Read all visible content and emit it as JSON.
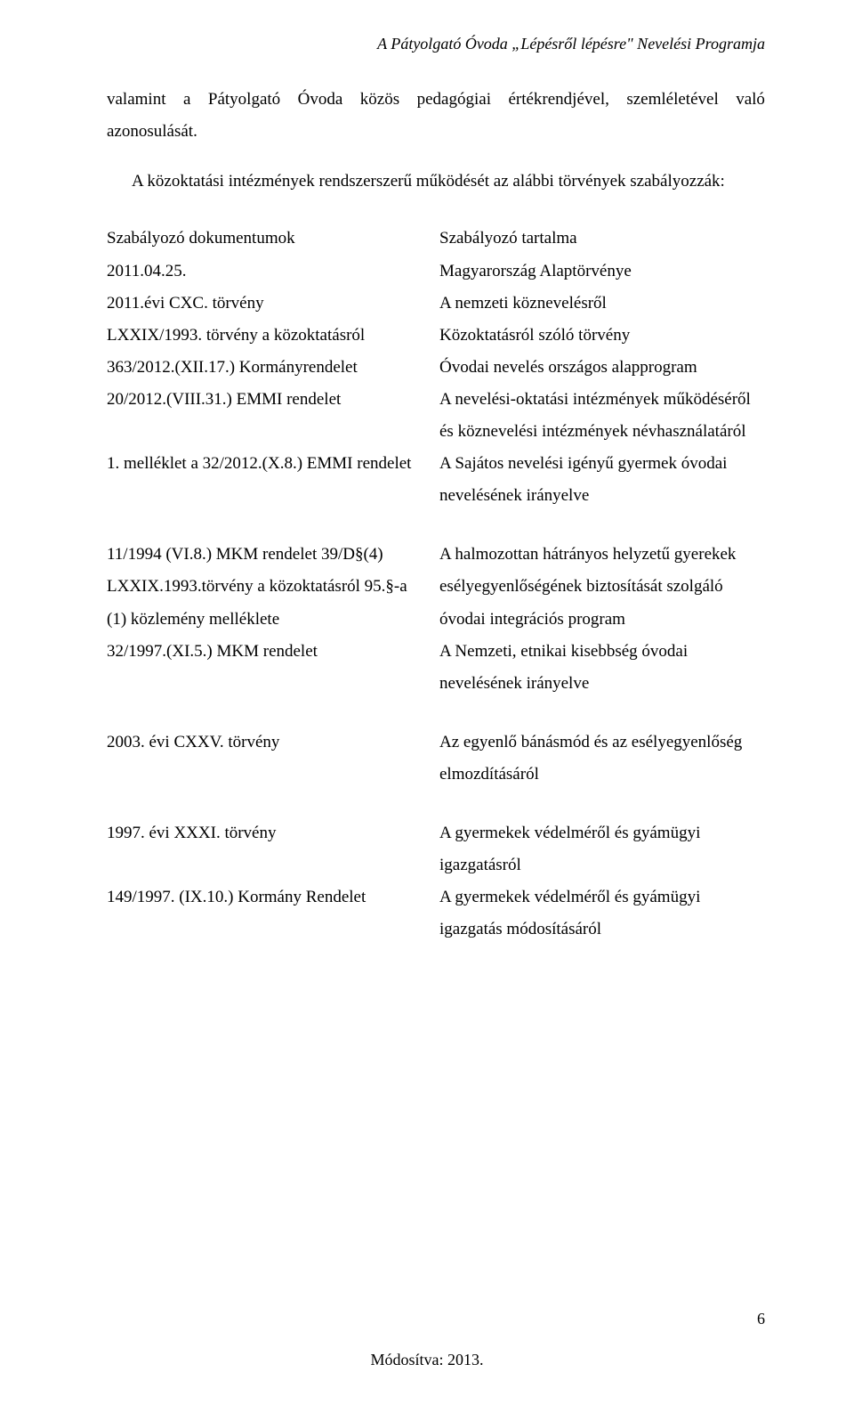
{
  "running_head": "A Pátyolgató Óvoda „Lépésről lépésre\" Nevelési Programja",
  "intro_w1": "valamint",
  "intro_w2": "a",
  "intro_w3": "Pátyolgató",
  "intro_w4": "Óvoda",
  "intro_w5": "közös",
  "intro_w6": "pedagógiai",
  "intro_w7": "értékrendjével,",
  "intro_w8": "szemléletével",
  "intro_w9": "való",
  "intro_line2": "azonosulását.",
  "intro_indent": "A közoktatási intézmények rendszerszerű működését az alábbi törvények szabályozzák:",
  "t1": {
    "l0": "Szabályozó dokumentumok",
    "l1": "2011.04.25.",
    "l2": "2011.évi CXC. törvény",
    "l3": "LXXIX/1993. törvény a közoktatásról",
    "l4": "363/2012.(XII.17.) Kormányrendelet",
    "l5": "20/2012.(VIII.31.) EMMI rendelet",
    "l6": "1. melléklet a 32/2012.(X.8.) EMMI rendelet",
    "r0": "Szabályozó tartalma",
    "r1": "Magyarország Alaptörvénye",
    "r2": "A nemzeti köznevelésről",
    "r3": "Közoktatásról szóló törvény",
    "r4": "Óvodai nevelés országos alapprogram",
    "r5": "A nevelési-oktatási intézmények működéséről és köznevelési intézmények névhasználatáról",
    "r6": "A Sajátos nevelési igényű gyermek óvodai nevelésének irányelve"
  },
  "t2": {
    "l1a": "11/1994 (VI.8.) MKM rendelet 39/D§(4)",
    "l1b": "LXXIX.1993.törvény a közoktatásról 95.§-a",
    "l1c": "(1) közlemény melléklete",
    "l2": "32/1997.(XI.5.) MKM rendelet",
    "r1": "A halmozottan hátrányos helyzetű gyerekek esélyegyenlőségének biztosítását szolgáló óvodai integrációs program",
    "r2": "A Nemzeti, etnikai kisebbség óvodai nevelésének irányelve"
  },
  "t3": {
    "l1": "2003. évi CXXV. törvény",
    "r1": "Az egyenlő bánásmód és az esélyegyenlőség elmozdításáról"
  },
  "t4": {
    "l1": "1997. évi XXXI. törvény",
    "l2": "149/1997. (IX.10.) Kormány Rendelet",
    "r1": "A gyermekek védelméről és gyámügyi igazgatásról",
    "r2": "A gyermekek védelméről és gyámügyi igazgatás módosításáról"
  },
  "footer": "Módosítva: 2013.",
  "pagenum": "6"
}
